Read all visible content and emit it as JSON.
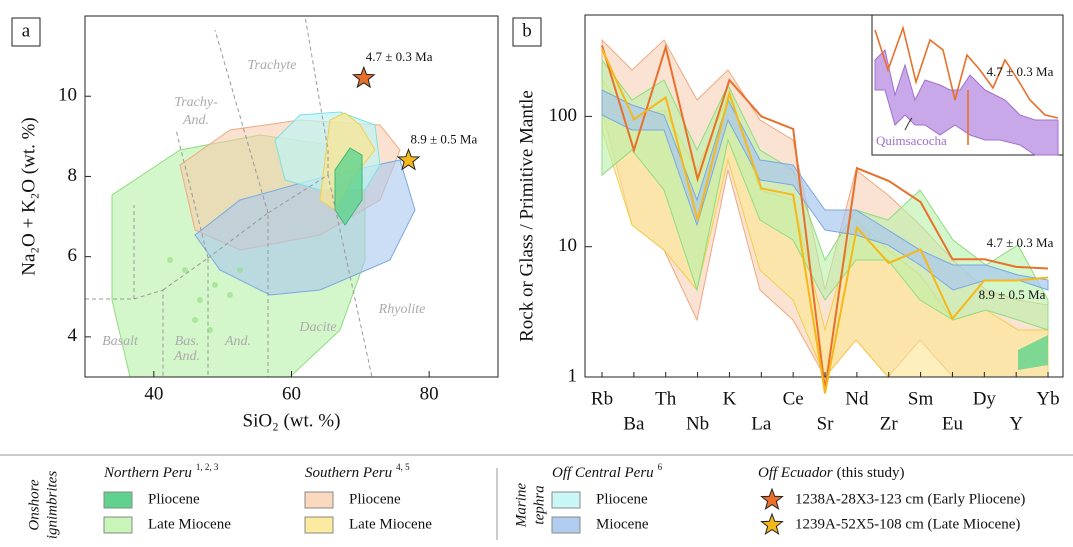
{
  "chart_data": [
    {
      "type": "scatter",
      "panel": "a",
      "xlabel": "SiO₂ (wt. %)",
      "ylabel": "Na₂O + K₂O (wt. %)",
      "xlim": [
        30,
        90
      ],
      "ylim": [
        3,
        12
      ],
      "xticks": [
        40,
        60,
        80
      ],
      "yticks": [
        4,
        6,
        8,
        10
      ],
      "field_labels": [
        "Trachyte",
        "Trachy-",
        "And.",
        "Basalt",
        "Bas.",
        "And.",
        "And.",
        "Dacite",
        "Rhyolite"
      ],
      "series": [
        {
          "name": "1238A-28X3-123 cm (Early Pliocene)",
          "color": "#e8702a",
          "x": [
            70.5
          ],
          "y": [
            10.45
          ],
          "label": "4.7 ± 0.3 Ma"
        },
        {
          "name": "1239A-52X5-108 cm (Late Miocene)",
          "color": "#f5b818",
          "x": [
            77
          ],
          "y": [
            8.4
          ],
          "label": "8.9 ± 0.5 Ma"
        }
      ]
    },
    {
      "type": "line",
      "panel": "b",
      "ylabel": "Rock or Glass / Primitive Mantle",
      "log_scale": true,
      "ylim": [
        1,
        600
      ],
      "yticks": [
        1,
        10,
        100
      ],
      "categories": [
        "Rb",
        "Ba",
        "Th",
        "Nb",
        "K",
        "La",
        "Ce",
        "Sr",
        "Nd",
        "Zr",
        "Sm",
        "Eu",
        "Dy",
        "Y",
        "Yb"
      ],
      "series": [
        {
          "color": "#e8702a",
          "values": [
            350,
            55,
            340,
            33,
            190,
            100,
            80,
            0.8,
            40,
            32,
            22,
            8,
            8,
            7,
            6.8
          ],
          "label": "4.7 ± 0.3 Ma"
        },
        {
          "color": "#f5b818",
          "values": [
            330,
            95,
            140,
            16,
            150,
            28,
            25,
            0.75,
            14,
            7.5,
            9.5,
            2.8,
            5.5,
            5.5,
            5.8
          ],
          "label": "8.9 ± 0.5 Ma"
        }
      ],
      "inset_labels": [
        "4.7 ± 0.3 Ma",
        "Quimsacocha"
      ]
    }
  ],
  "legend": {
    "onshore": [
      "Onshore",
      "ignimbrites"
    ],
    "marine": [
      "Marine",
      "tephra"
    ],
    "groups": [
      {
        "title": "Northern Peru",
        "refs": "1, 2, 3",
        "items": [
          {
            "label": "Pliocene",
            "color": "#5fd38d"
          },
          {
            "label": "Late Miocene",
            "color": "#c8f5b8"
          }
        ]
      },
      {
        "title": "Southern Peru",
        "refs": "4, 5",
        "items": [
          {
            "label": "Pliocene",
            "color": "#fbd8c0"
          },
          {
            "label": "Late Miocene",
            "color": "#fbeaa0"
          }
        ]
      },
      {
        "title": "Off Central Peru",
        "refs": "6",
        "items": [
          {
            "label": "Pliocene",
            "color": "#c8f7f5"
          },
          {
            "label": "Miocene",
            "color": "#b0cdf0"
          }
        ]
      },
      {
        "title": "Off Ecuador",
        "refs": "(this study)"
      }
    ]
  }
}
